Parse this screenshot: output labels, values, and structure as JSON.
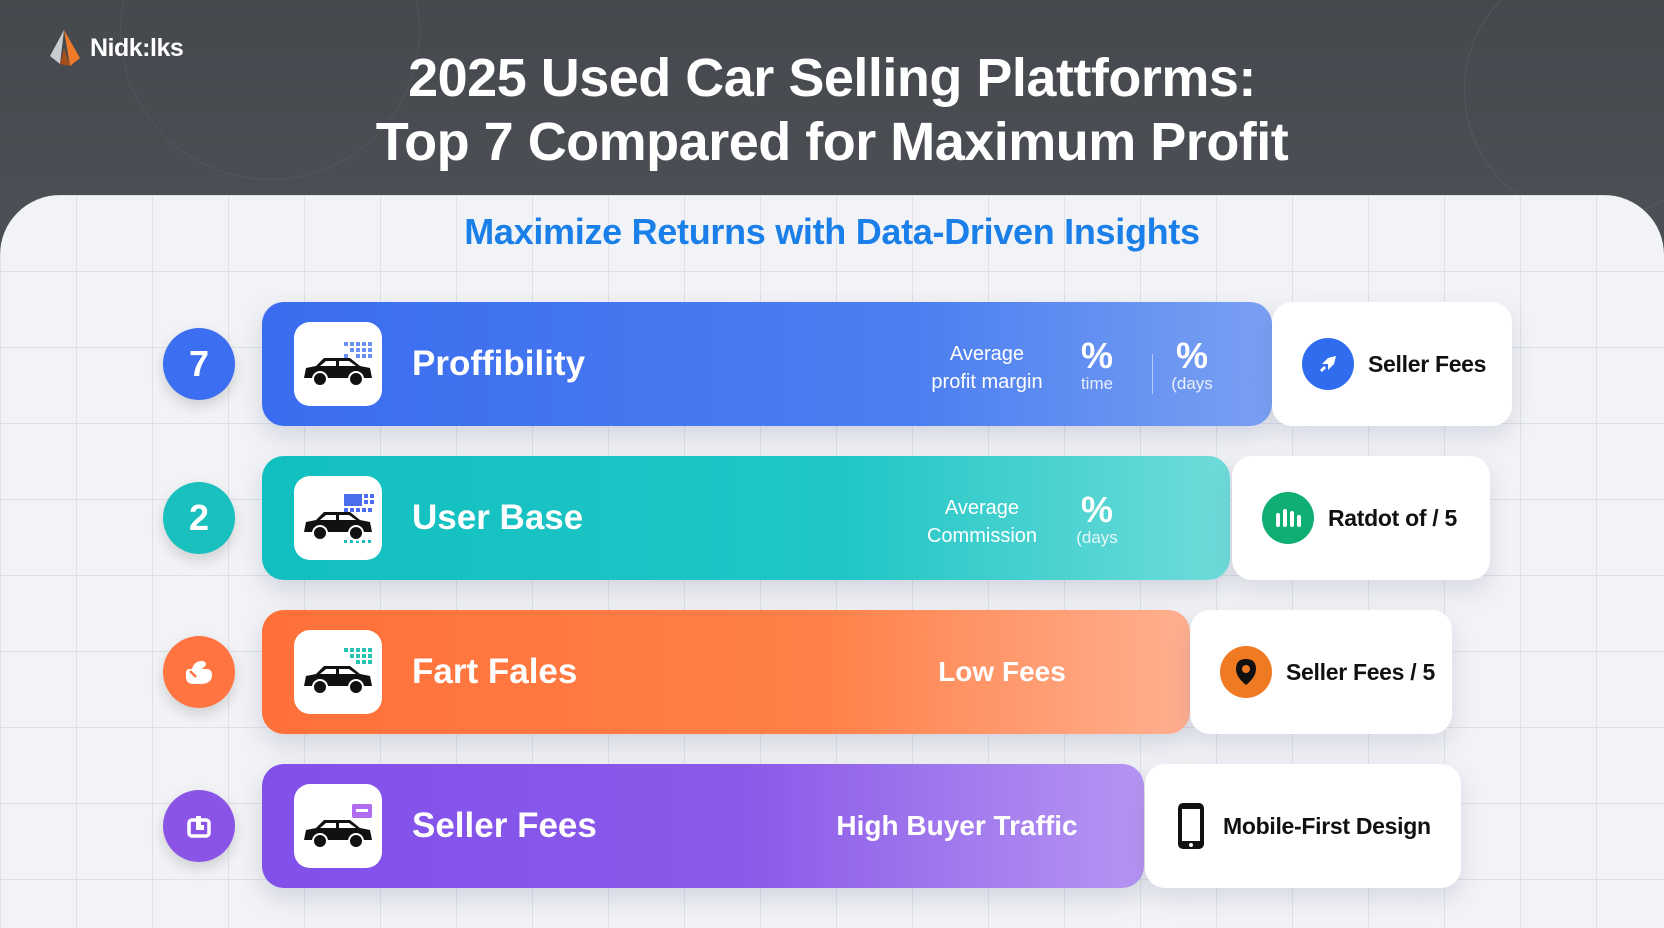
{
  "logo": {
    "text": "Nidk:lks"
  },
  "header": {
    "title_line1": "2025 Used Car Selling Plattforms:",
    "title_line2": "Top 7 Compared for Maximum Profit"
  },
  "subtitle": "Maximize Returns with Data-Driven Insights",
  "rows": [
    {
      "number": "7",
      "label": "Proffibility",
      "metric_label_line1": "Average",
      "metric_label_line2": "profit margin",
      "metric1_big": "%",
      "metric1_small": "time",
      "metric2_big": "%",
      "metric2_small": "(days",
      "side_text": "Seller Fees",
      "side_icon": "rocket-icon",
      "color": "#3f72ee"
    },
    {
      "number": "2",
      "label": "User Base",
      "metric_label_line1": "Average",
      "metric_label_line2": "Commission",
      "metric1_big": "%",
      "metric1_small": "(days",
      "side_text": "Ratdot of / 5",
      "side_icon": "bar-chart-icon",
      "color": "#1cc4c4"
    },
    {
      "number_icon": "hand-icon",
      "label": "Fart Fales",
      "metric_text": "Low Fees",
      "side_text": "Seller Fees / 5",
      "side_icon": "location-pin-icon",
      "color": "#ff7640"
    },
    {
      "number_icon": "layers-icon",
      "label": "Seller Fees",
      "metric_text": "High Buyer Traffic",
      "side_text": "Mobile-First Design",
      "side_icon": "smartphone-icon",
      "color": "#8a57ea"
    }
  ]
}
